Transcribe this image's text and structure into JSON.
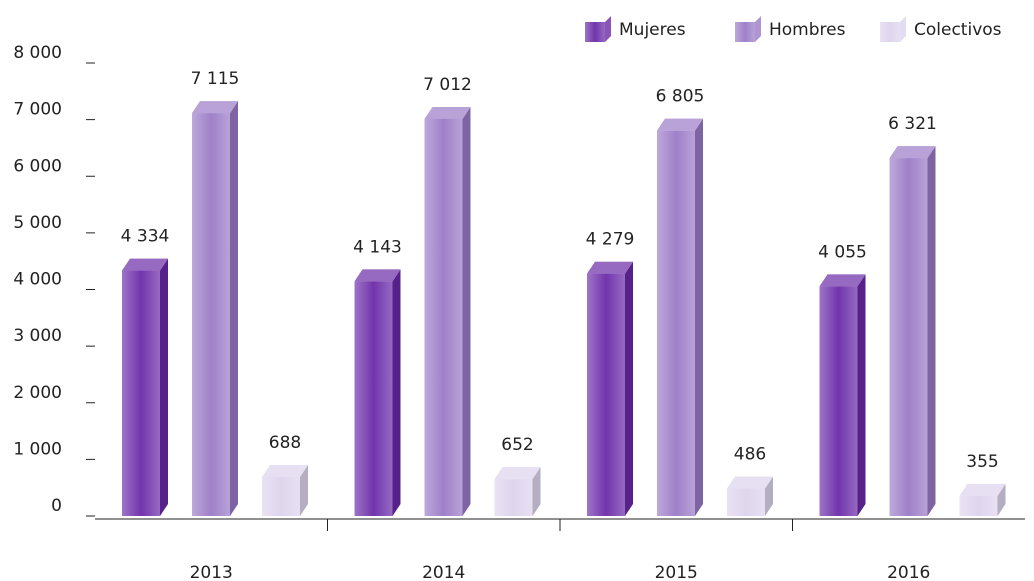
{
  "chart_data": {
    "type": "bar3d",
    "categories": [
      "2013",
      "2014",
      "2015",
      "2016"
    ],
    "series": [
      {
        "name": "Mujeres",
        "color": "#6a2aa8",
        "values": [
          4334,
          4143,
          4279,
          4055
        ],
        "value_labels": [
          "4 334",
          "4 143",
          "4 279",
          "4 055"
        ]
      },
      {
        "name": "Hombres",
        "color": "#9a7ac6",
        "values": [
          7115,
          7012,
          6805,
          6321
        ],
        "value_labels": [
          "7 115",
          "7 012",
          "6 805",
          "6 321"
        ]
      },
      {
        "name": "Colectivos",
        "color": "#ddd3ec",
        "values": [
          688,
          652,
          486,
          355
        ],
        "value_labels": [
          "688",
          "652",
          "486",
          "355"
        ]
      }
    ],
    "ylim": [
      0,
      8000
    ],
    "yticks": [
      0,
      {
        "value": 1000,
        "label": "1 000"
      },
      {
        "value": 2000,
        "label": "2 000"
      },
      {
        "value": 3000,
        "label": "3 000"
      },
      {
        "value": 4000,
        "label": "4 000"
      },
      {
        "value": 5000,
        "label": "5 000"
      },
      {
        "value": 6000,
        "label": "6 000"
      },
      {
        "value": 7000,
        "label": "7 000"
      },
      {
        "value": 8000,
        "label": "8 000"
      }
    ],
    "legend": "top-right"
  }
}
